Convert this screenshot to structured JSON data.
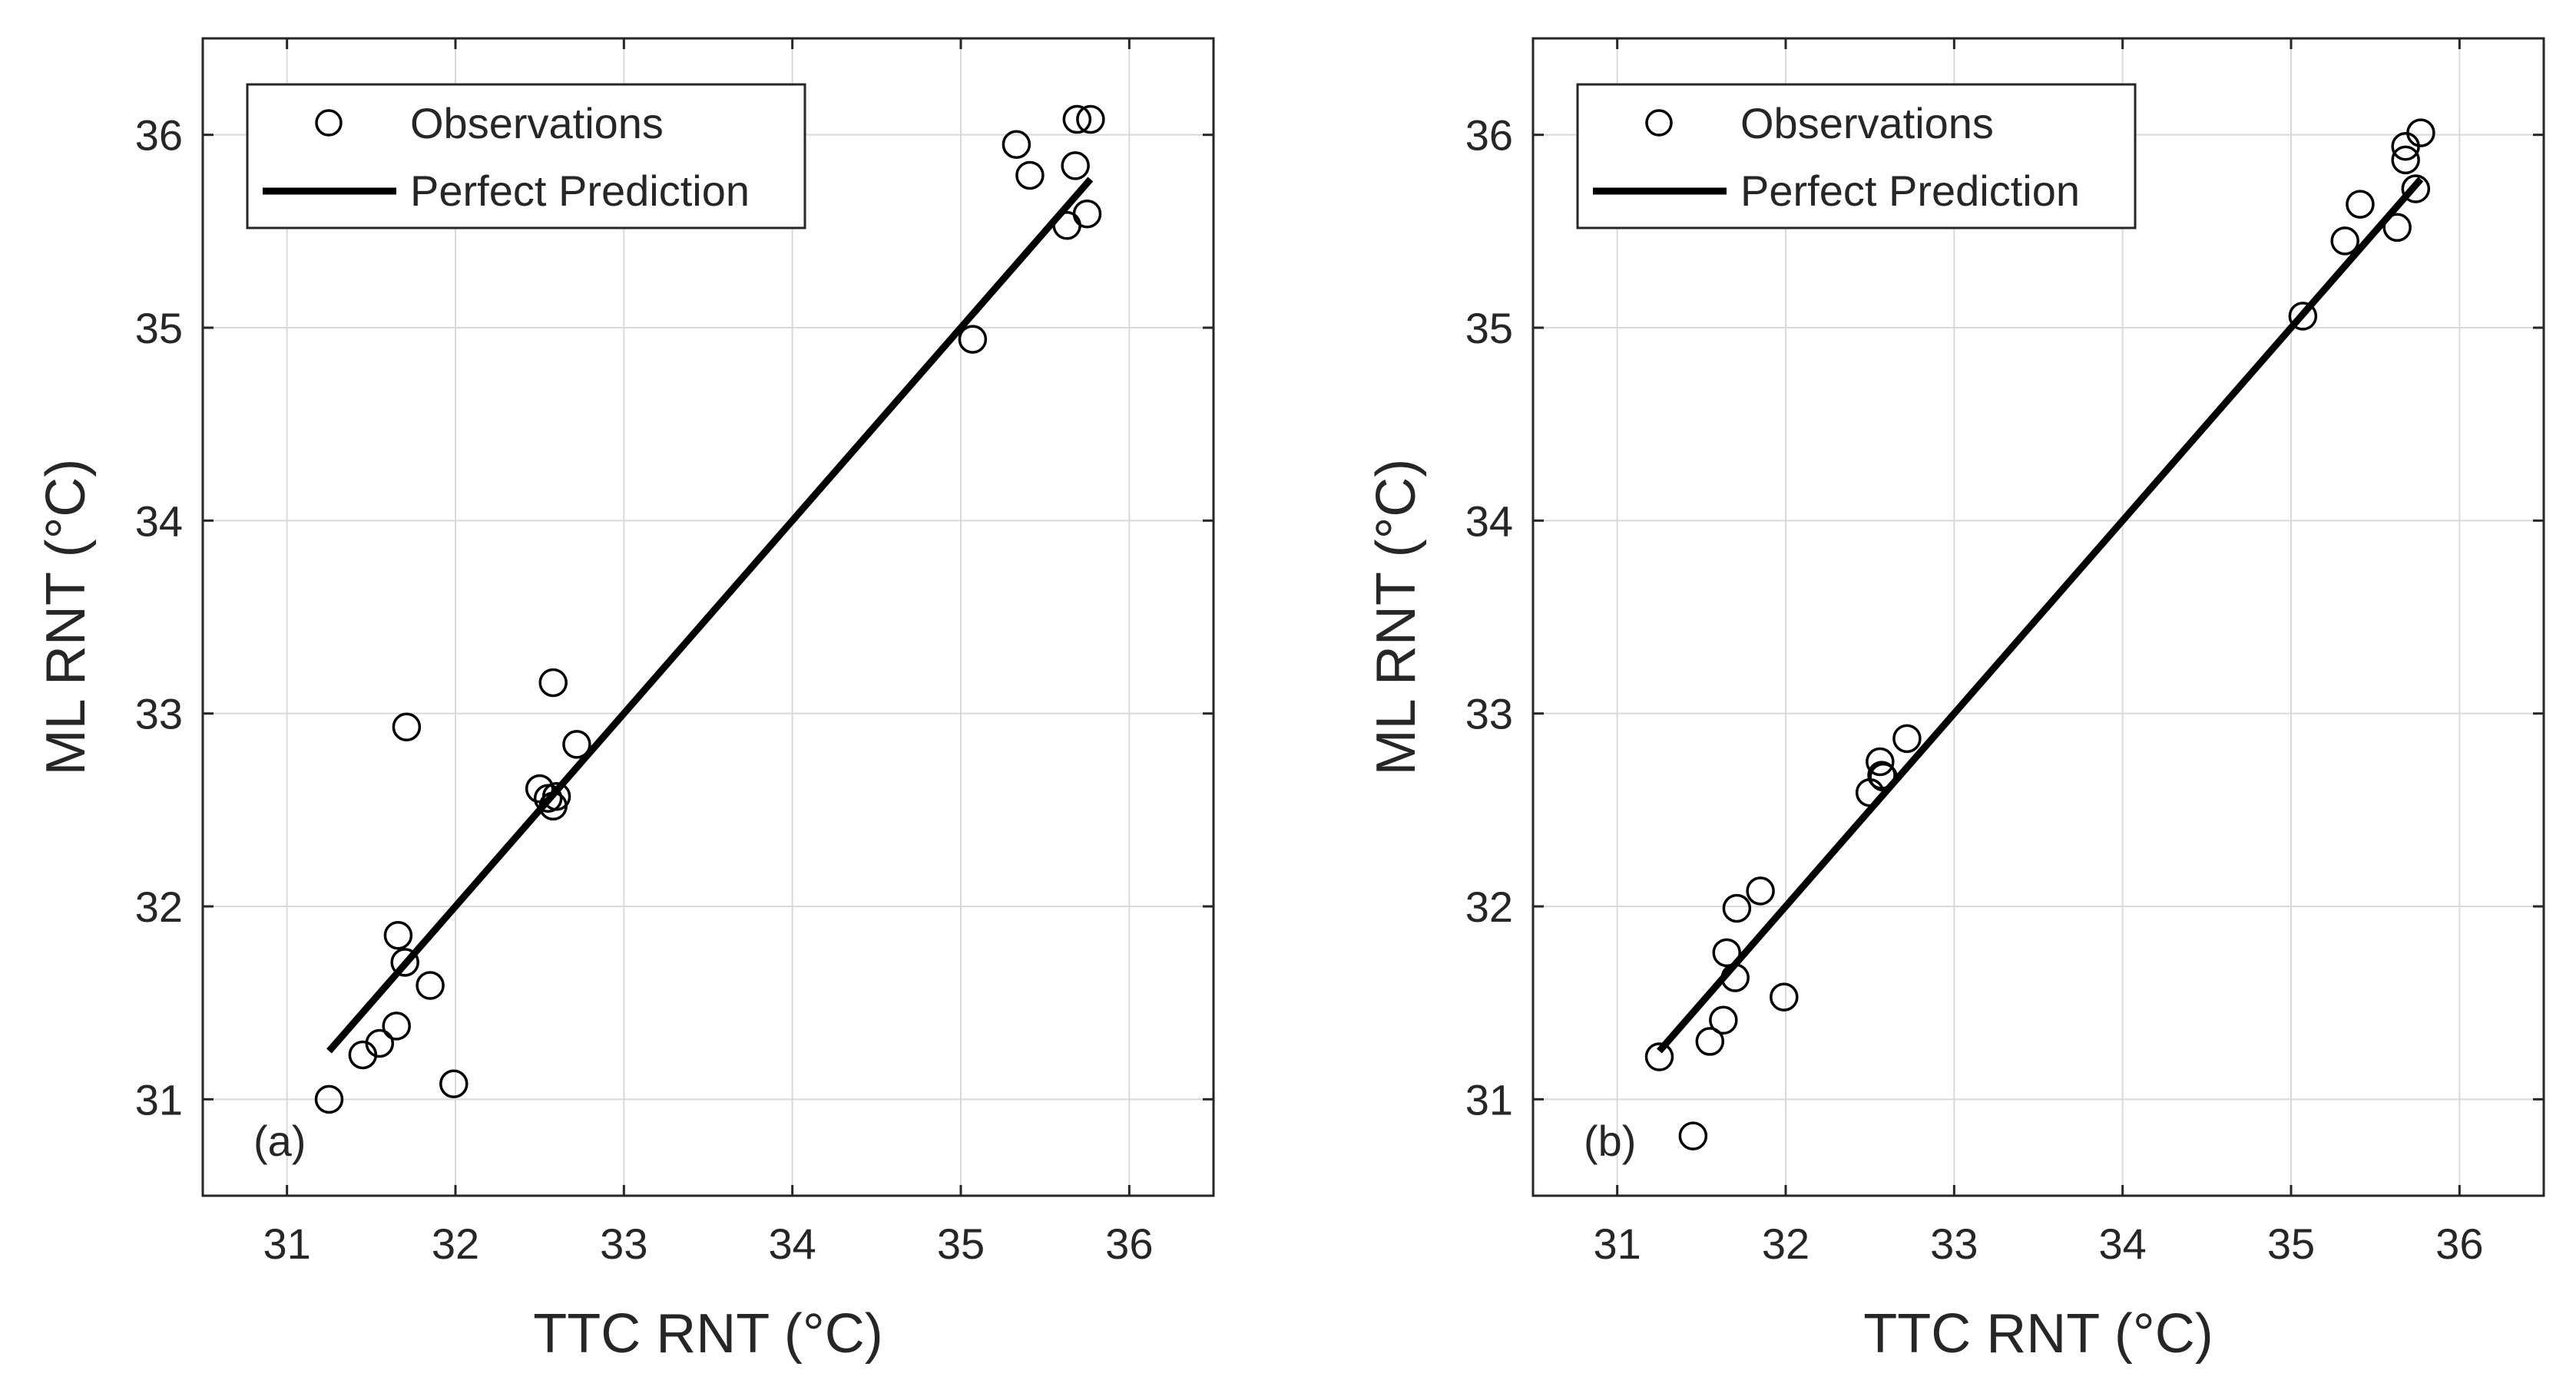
{
  "chart_data": [
    {
      "type": "scatter",
      "panel_label": "(a)",
      "xlabel": "TTC RNT (°C)",
      "ylabel": "ML RNT (°C)",
      "xlim": [
        30.5,
        36.5
      ],
      "ylim": [
        30.5,
        36.5
      ],
      "xticks": [
        31,
        32,
        33,
        34,
        35,
        36
      ],
      "yticks": [
        31,
        32,
        33,
        34,
        35,
        36
      ],
      "xtick_labels": [
        "31",
        "32",
        "33",
        "34",
        "35",
        "36"
      ],
      "ytick_labels": [
        "31",
        "32",
        "33",
        "34",
        "35",
        "36"
      ],
      "grid": true,
      "legend": {
        "placement": "top-left",
        "entries": [
          "Observations",
          "Perfect Prediction"
        ]
      },
      "series": [
        {
          "name": "Observations",
          "marker": "open-circle",
          "x": [
            31.25,
            31.45,
            31.55,
            31.65,
            31.66,
            31.7,
            31.71,
            31.85,
            31.99,
            32.5,
            32.55,
            32.58,
            32.6,
            32.58,
            32.72,
            35.07,
            35.33,
            35.41,
            35.63,
            35.68,
            35.69,
            35.75,
            35.77
          ],
          "y": [
            31.0,
            31.23,
            31.29,
            31.38,
            31.85,
            31.71,
            32.93,
            31.59,
            31.08,
            32.61,
            32.56,
            32.52,
            32.57,
            33.16,
            32.84,
            34.94,
            35.95,
            35.79,
            35.53,
            35.84,
            36.08,
            35.59,
            36.08
          ]
        },
        {
          "name": "Perfect Prediction",
          "type": "line",
          "x": [
            31.25,
            35.77
          ],
          "y": [
            31.25,
            35.77
          ]
        }
      ]
    },
    {
      "type": "scatter",
      "panel_label": "(b)",
      "xlabel": "TTC RNT (°C)",
      "ylabel": "ML RNT (°C)",
      "xlim": [
        30.5,
        36.5
      ],
      "ylim": [
        30.5,
        36.5
      ],
      "xticks": [
        31,
        32,
        33,
        34,
        35,
        36
      ],
      "yticks": [
        31,
        32,
        33,
        34,
        35,
        36
      ],
      "xtick_labels": [
        "31",
        "32",
        "33",
        "34",
        "35",
        "36"
      ],
      "ytick_labels": [
        "31",
        "32",
        "33",
        "34",
        "35",
        "36"
      ],
      "grid": true,
      "legend": {
        "placement": "top-left",
        "entries": [
          "Observations",
          "Perfect Prediction"
        ]
      },
      "series": [
        {
          "name": "Observations",
          "marker": "open-circle",
          "x": [
            31.25,
            31.45,
            31.55,
            31.63,
            31.65,
            31.7,
            31.71,
            31.85,
            31.99,
            32.5,
            32.56,
            32.57,
            32.58,
            32.72,
            35.07,
            35.32,
            35.41,
            35.63,
            35.68,
            35.68,
            35.74,
            35.77
          ],
          "y": [
            31.22,
            30.81,
            31.3,
            31.41,
            31.76,
            31.63,
            31.99,
            32.08,
            31.53,
            32.59,
            32.75,
            32.68,
            32.67,
            32.87,
            35.06,
            35.45,
            35.64,
            35.52,
            35.87,
            35.94,
            35.72,
            36.01
          ]
        },
        {
          "name": "Perfect Prediction",
          "type": "line",
          "x": [
            31.25,
            35.77
          ],
          "y": [
            31.25,
            35.77
          ]
        }
      ]
    }
  ]
}
